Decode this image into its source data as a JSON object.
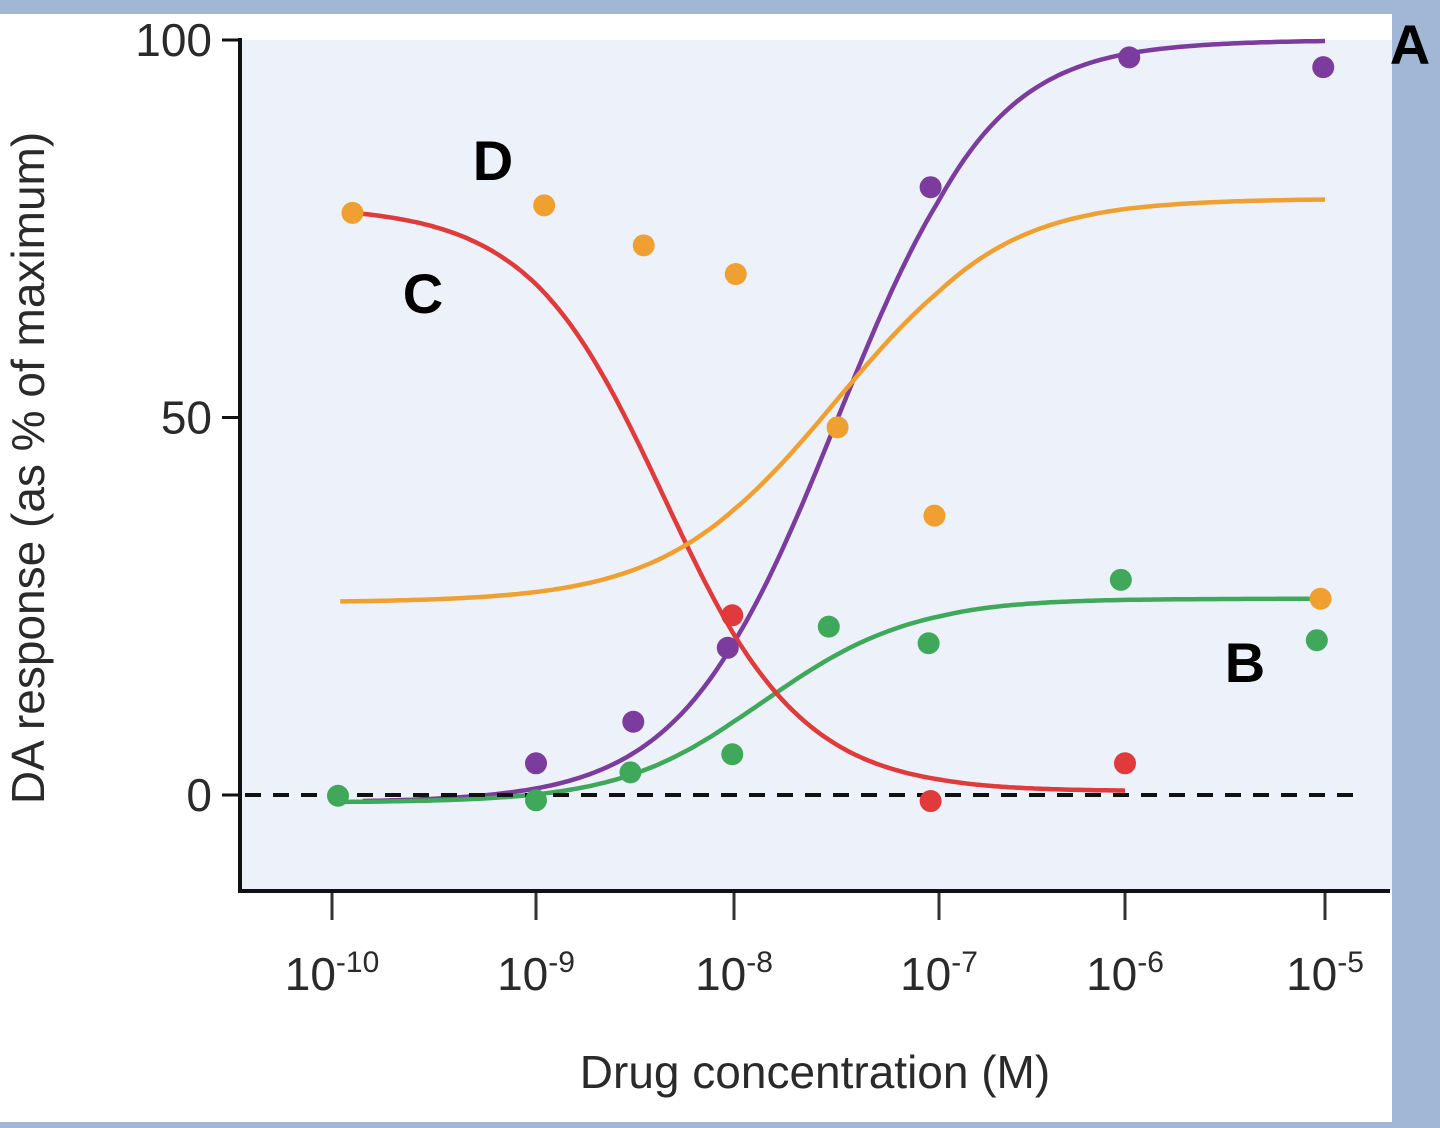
{
  "chart_data": {
    "type": "scatter",
    "title": "",
    "xlabel": "Drug concentration (M)",
    "ylabel": "DA response (as % of maximum)",
    "x_scale": "log",
    "xlim": [
      1e-10,
      1e-05
    ],
    "ylim": [
      -12.6,
      100
    ],
    "x_ticks": [
      {
        "base": "10",
        "exp": "-10",
        "value": -10
      },
      {
        "base": "10",
        "exp": "-9",
        "value": -9
      },
      {
        "base": "10",
        "exp": "-8",
        "value": -8
      },
      {
        "base": "10",
        "exp": "-7",
        "value": -7
      },
      {
        "base": "10",
        "exp": "-6",
        "value": -6
      },
      {
        "base": "10",
        "exp": "-5",
        "value": -5
      }
    ],
    "y_ticks": [
      "0",
      "50",
      "100"
    ],
    "y_tick_values": [
      0,
      50,
      100
    ],
    "reference_line": {
      "y": 0,
      "style": "dashed"
    },
    "grid": false,
    "series": [
      {
        "name": "A",
        "color": "#7b3c9e",
        "points": [
          [
            1e-09,
            4.2
          ],
          [
            3.1e-09,
            9.7
          ],
          [
            9.3e-09,
            19.5
          ],
          [
            9.1e-08,
            80.5
          ],
          [
            1.05e-06,
            97.7
          ],
          [
            9.8e-06,
            96.4
          ]
        ]
      },
      {
        "name": "B",
        "color": "#3fa85a",
        "points": [
          [
            1.07e-10,
            -0.1
          ],
          [
            1e-09,
            -0.7
          ],
          [
            3e-09,
            3
          ],
          [
            9.8e-09,
            5.4
          ],
          [
            2.9e-08,
            22.3
          ],
          [
            8.9e-08,
            20.1
          ],
          [
            9.5e-07,
            28.5
          ],
          [
            9.1e-06,
            20.5
          ]
        ]
      },
      {
        "name": "C",
        "color": "#e03a3a",
        "points": [
          [
            9.8e-09,
            23.8
          ],
          [
            9.1e-08,
            -0.8
          ],
          [
            1e-06,
            4.2
          ]
        ]
      },
      {
        "name": "D",
        "color": "#f0a030",
        "points": [
          [
            1.26e-10,
            77.1
          ],
          [
            1.1e-09,
            78.1
          ],
          [
            3.5e-09,
            72.8
          ],
          [
            1.02e-08,
            69
          ],
          [
            3.2e-08,
            48.7
          ],
          [
            9.5e-08,
            37
          ],
          [
            9.5e-06,
            26
          ]
        ]
      }
    ],
    "annotations": [
      "A",
      "B",
      "C",
      "D"
    ]
  }
}
